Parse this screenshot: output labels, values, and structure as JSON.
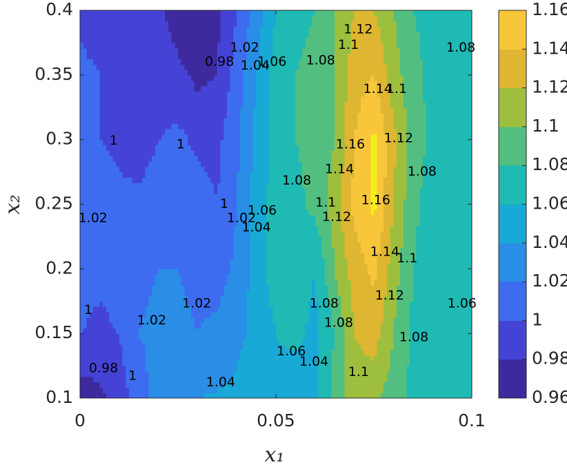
{
  "chart_data": {
    "type": "contour",
    "x_label": "x₁",
    "y_label": "x₂",
    "xlim": [
      0,
      0.1
    ],
    "ylim": [
      0.1,
      0.4
    ],
    "xticks": [
      0,
      0.05,
      0.1
    ],
    "yticks": [
      0.1,
      0.15,
      0.2,
      0.25,
      0.3,
      0.35,
      0.4
    ],
    "x": [
      0,
      0.005,
      0.01,
      0.015,
      0.02,
      0.025,
      0.03,
      0.035,
      0.04,
      0.045,
      0.05,
      0.055,
      0.06,
      0.065,
      0.07,
      0.075,
      0.08,
      0.085,
      0.09,
      0.095,
      0.1
    ],
    "y": [
      0.1,
      0.15,
      0.2,
      0.25,
      0.3,
      0.35,
      0.4
    ],
    "z": [
      [
        0.97,
        0.975,
        0.99,
        1.01,
        1.03,
        1.035,
        1.04,
        1.042,
        1.045,
        1.05,
        1.055,
        1.045,
        1.05,
        1.09,
        1.11,
        1.105,
        1.09,
        1.075,
        1.07,
        1.07,
        1.07
      ],
      [
        1.0,
        0.995,
        1.0,
        1.02,
        1.025,
        1.025,
        1.02,
        1.025,
        1.035,
        1.045,
        1.06,
        1.065,
        1.055,
        1.08,
        1.12,
        1.13,
        1.1,
        1.075,
        1.07,
        1.065,
        1.07
      ],
      [
        1.01,
        1.005,
        1.01,
        1.015,
        1.02,
        1.02,
        1.015,
        1.01,
        1.025,
        1.05,
        1.07,
        1.07,
        1.06,
        1.1,
        1.13,
        1.145,
        1.11,
        1.08,
        1.07,
        1.07,
        1.07
      ],
      [
        1.02,
        1.01,
        1.005,
        1.005,
        1.01,
        1.015,
        1.01,
        1.0,
        1.02,
        1.05,
        1.07,
        1.075,
        1.085,
        1.11,
        1.145,
        1.165,
        1.12,
        1.085,
        1.07,
        1.07,
        1.07
      ],
      [
        1.01,
        1.0,
        0.995,
        0.99,
        1.0,
        1.005,
        0.995,
        0.995,
        1.015,
        1.045,
        1.065,
        1.08,
        1.085,
        1.1,
        1.14,
        1.165,
        1.125,
        1.09,
        1.075,
        1.07,
        1.075
      ],
      [
        1.005,
        1.0,
        0.995,
        0.99,
        0.99,
        0.985,
        0.975,
        0.98,
        1.01,
        1.04,
        1.07,
        1.08,
        1.085,
        1.1,
        1.13,
        1.14,
        1.11,
        1.085,
        1.075,
        1.08,
        1.075
      ],
      [
        0.995,
        0.99,
        0.99,
        0.99,
        0.985,
        0.97,
        0.965,
        0.975,
        1.0,
        1.03,
        1.06,
        1.075,
        1.08,
        1.1,
        1.12,
        1.12,
        1.1,
        1.08,
        1.075,
        1.08,
        1.075
      ]
    ],
    "levels": [
      0.96,
      0.98,
      1,
      1.02,
      1.04,
      1.06,
      1.08,
      1.1,
      1.12,
      1.14,
      1.16
    ],
    "colors": [
      "#3e2a9e",
      "#4543d6",
      "#3d6cf0",
      "#2a8de6",
      "#18a9d6",
      "#1fbab3",
      "#52bf80",
      "#9ebf3e",
      "#dfb631",
      "#f8c63a",
      "#f5ef17"
    ],
    "contour_labels": [
      {
        "text": "0.98",
        "x": 0.0356,
        "y": 0.36
      },
      {
        "text": "1.02",
        "x": 0.042,
        "y": 0.371
      },
      {
        "text": "1.04",
        "x": 0.0447,
        "y": 0.357
      },
      {
        "text": "1.06",
        "x": 0.049,
        "y": 0.36
      },
      {
        "text": "1.08",
        "x": 0.0614,
        "y": 0.361
      },
      {
        "text": "1.1",
        "x": 0.0685,
        "y": 0.373
      },
      {
        "text": "1.12",
        "x": 0.071,
        "y": 0.385
      },
      {
        "text": "1.08",
        "x": 0.0972,
        "y": 0.371
      },
      {
        "text": "1.14",
        "x": 0.076,
        "y": 0.339
      },
      {
        "text": "1.1",
        "x": 0.0808,
        "y": 0.339
      },
      {
        "text": "1",
        "x": 0.0086,
        "y": 0.299
      },
      {
        "text": "1",
        "x": 0.0257,
        "y": 0.296
      },
      {
        "text": "1.16",
        "x": 0.069,
        "y": 0.296
      },
      {
        "text": "1.12",
        "x": 0.0813,
        "y": 0.301
      },
      {
        "text": "1.08",
        "x": 0.0553,
        "y": 0.268
      },
      {
        "text": "1.14",
        "x": 0.0662,
        "y": 0.277
      },
      {
        "text": "1.08",
        "x": 0.0873,
        "y": 0.275
      },
      {
        "text": "1.02",
        "x": 0.0033,
        "y": 0.239
      },
      {
        "text": "1",
        "x": 0.0368,
        "y": 0.25
      },
      {
        "text": "1.02",
        "x": 0.0412,
        "y": 0.239
      },
      {
        "text": "1.04",
        "x": 0.045,
        "y": 0.232
      },
      {
        "text": "1.06",
        "x": 0.0465,
        "y": 0.245
      },
      {
        "text": "1.1",
        "x": 0.0627,
        "y": 0.251
      },
      {
        "text": "1.12",
        "x": 0.0655,
        "y": 0.24
      },
      {
        "text": "1.16",
        "x": 0.0755,
        "y": 0.253
      },
      {
        "text": "1.14",
        "x": 0.0778,
        "y": 0.213
      },
      {
        "text": "1.1",
        "x": 0.0835,
        "y": 0.208
      },
      {
        "text": "1.02",
        "x": 0.0298,
        "y": 0.173
      },
      {
        "text": "1",
        "x": 0.0021,
        "y": 0.168
      },
      {
        "text": "1.02",
        "x": 0.0183,
        "y": 0.16
      },
      {
        "text": "1.06",
        "x": 0.0975,
        "y": 0.173
      },
      {
        "text": "1.08",
        "x": 0.0623,
        "y": 0.173
      },
      {
        "text": "1.08",
        "x": 0.066,
        "y": 0.158
      },
      {
        "text": "1.12",
        "x": 0.079,
        "y": 0.179
      },
      {
        "text": "1.08",
        "x": 0.0852,
        "y": 0.147
      },
      {
        "text": "0.98",
        "x": 0.006,
        "y": 0.123
      },
      {
        "text": "1",
        "x": 0.0134,
        "y": 0.117
      },
      {
        "text": "1.06",
        "x": 0.0539,
        "y": 0.136
      },
      {
        "text": "1.04",
        "x": 0.0597,
        "y": 0.128
      },
      {
        "text": "1.1",
        "x": 0.0711,
        "y": 0.12
      },
      {
        "text": "1.04",
        "x": 0.0359,
        "y": 0.112
      }
    ]
  }
}
